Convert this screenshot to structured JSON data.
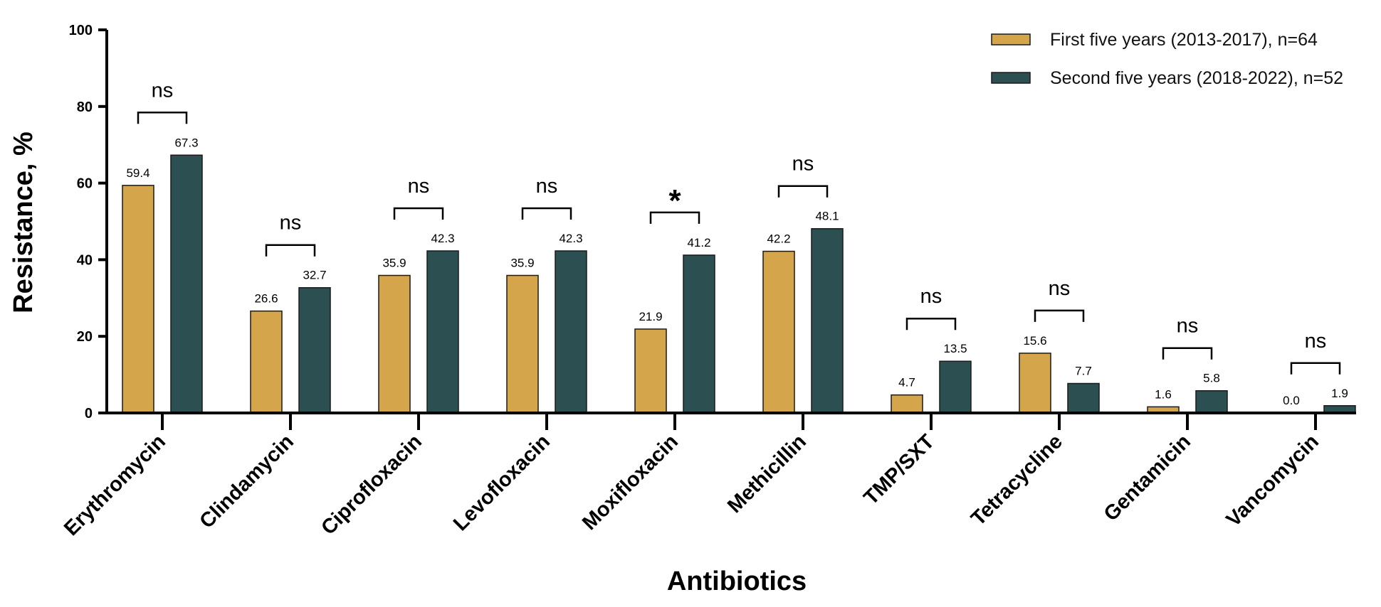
{
  "chart_data": {
    "type": "bar",
    "title": "",
    "xlabel": "Antibiotics",
    "ylabel": "Resistance, %",
    "ylim": [
      0,
      100
    ],
    "yticks": [
      "0",
      "20",
      "40",
      "60",
      "80",
      "100"
    ],
    "categories": [
      "Erythromycin",
      "Clindamycin",
      "Ciprofloxacin",
      "Levofloxacin",
      "Moxifloxacin",
      "Methicillin",
      "TMP/SXT",
      "Tetracycline",
      "Gentamicin",
      "Vancomycin"
    ],
    "series": [
      {
        "name": "First five years (2013-2017), n=64",
        "color": "#D4A54A",
        "values": [
          59.4,
          26.6,
          35.9,
          35.9,
          21.9,
          42.2,
          4.7,
          15.6,
          1.6,
          0.0
        ],
        "labels": [
          "59.4",
          "26.6",
          "35.9",
          "35.9",
          "21.9",
          "42.2",
          "4.7",
          "15.6",
          "1.6",
          "0.0"
        ]
      },
      {
        "name": "Second five years (2018-2022), n=52",
        "color": "#2C5052",
        "values": [
          67.3,
          32.7,
          42.3,
          42.3,
          41.2,
          48.1,
          13.5,
          7.7,
          5.8,
          1.9
        ],
        "labels": [
          "67.3",
          "32.7",
          "42.3",
          "42.3",
          "41.2",
          "48.1",
          "13.5",
          "7.7",
          "5.8",
          "1.9"
        ]
      }
    ],
    "significance": [
      "ns",
      "ns",
      "ns",
      "ns",
      "*",
      "ns",
      "ns",
      "ns",
      "ns",
      "ns"
    ],
    "legend_position": "top-right",
    "grid": false
  }
}
